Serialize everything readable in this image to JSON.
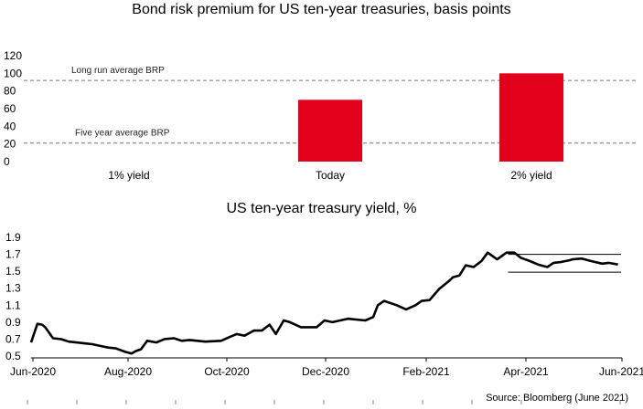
{
  "chart_data": [
    {
      "type": "bar",
      "title": "Bond risk premium for US ten-year treasuries, basis points",
      "categories": [
        "1% yield",
        "Today",
        "2% yield"
      ],
      "values": [
        0,
        70,
        100
      ],
      "ylim": [
        0,
        120
      ],
      "yticks": [
        "120",
        "100",
        "80",
        "60",
        "40",
        "20",
        "0"
      ],
      "bar_color": "#e3001b",
      "reference_lines": [
        {
          "label": "Long run average BRP",
          "value": 92
        },
        {
          "label": "Five year average BRP",
          "value": 21
        }
      ],
      "grid": false,
      "legend": "none"
    },
    {
      "type": "line",
      "title": "US ten-year treasury yield, %",
      "ylim": [
        0.5,
        1.9
      ],
      "yticks": [
        "1.9",
        "1.7",
        "1.5",
        "1.3",
        "1.1",
        "0.9",
        "0.7",
        "0.5"
      ],
      "xticks": [
        "Jun-2020",
        "Aug-2020",
        "Oct-2020",
        "Dec-2020",
        "Feb-2021",
        "Apr-2021",
        "Jun-2021"
      ],
      "series": [
        {
          "color": "#000000",
          "x": [
            "2020-06-01",
            "2020-06-05",
            "2020-06-08",
            "2020-06-10",
            "2020-06-15",
            "2020-06-20",
            "2020-06-25",
            "2020-06-30",
            "2020-07-05",
            "2020-07-10",
            "2020-07-15",
            "2020-07-20",
            "2020-07-25",
            "2020-07-31",
            "2020-08-04",
            "2020-08-07",
            "2020-08-10",
            "2020-08-14",
            "2020-08-20",
            "2020-08-25",
            "2020-08-31",
            "2020-09-05",
            "2020-09-10",
            "2020-09-20",
            "2020-09-30",
            "2020-10-05",
            "2020-10-10",
            "2020-10-15",
            "2020-10-21",
            "2020-10-26",
            "2020-10-31",
            "2020-11-04",
            "2020-11-09",
            "2020-11-13",
            "2020-11-20",
            "2020-11-30",
            "2020-12-05",
            "2020-12-10",
            "2020-12-15",
            "2020-12-20",
            "2020-12-31",
            "2021-01-05",
            "2021-01-08",
            "2021-01-12",
            "2021-01-20",
            "2021-01-26",
            "2021-02-01",
            "2021-02-05",
            "2021-02-10",
            "2021-02-16",
            "2021-02-22",
            "2021-02-25",
            "2021-03-01",
            "2021-03-05",
            "2021-03-10",
            "2021-03-15",
            "2021-03-19",
            "2021-03-25",
            "2021-03-31",
            "2021-04-05",
            "2021-04-09",
            "2021-04-15",
            "2021-04-20",
            "2021-04-26",
            "2021-04-30",
            "2021-05-05",
            "2021-05-10",
            "2021-05-12",
            "2021-05-18",
            "2021-05-24",
            "2021-05-31",
            "2021-06-04",
            "2021-06-10"
          ],
          "values": [
            0.66,
            0.88,
            0.87,
            0.84,
            0.71,
            0.7,
            0.67,
            0.66,
            0.65,
            0.64,
            0.62,
            0.6,
            0.59,
            0.55,
            0.53,
            0.56,
            0.58,
            0.68,
            0.66,
            0.7,
            0.71,
            0.68,
            0.69,
            0.67,
            0.68,
            0.72,
            0.76,
            0.74,
            0.8,
            0.8,
            0.87,
            0.76,
            0.92,
            0.9,
            0.84,
            0.84,
            0.92,
            0.9,
            0.92,
            0.94,
            0.92,
            0.96,
            1.1,
            1.15,
            1.1,
            1.05,
            1.1,
            1.15,
            1.16,
            1.29,
            1.38,
            1.43,
            1.45,
            1.57,
            1.55,
            1.62,
            1.72,
            1.64,
            1.72,
            1.72,
            1.66,
            1.62,
            1.58,
            1.55,
            1.6,
            1.61,
            1.63,
            1.64,
            1.65,
            1.62,
            1.59,
            1.6,
            1.58
          ]
        }
      ],
      "reference_band": {
        "from": "2021-04-01",
        "to": "2021-06-12",
        "upper": 1.7,
        "lower": 1.49
      },
      "grid": false,
      "legend": "none"
    }
  ],
  "source": "Source: Bloomberg (June 2021)"
}
